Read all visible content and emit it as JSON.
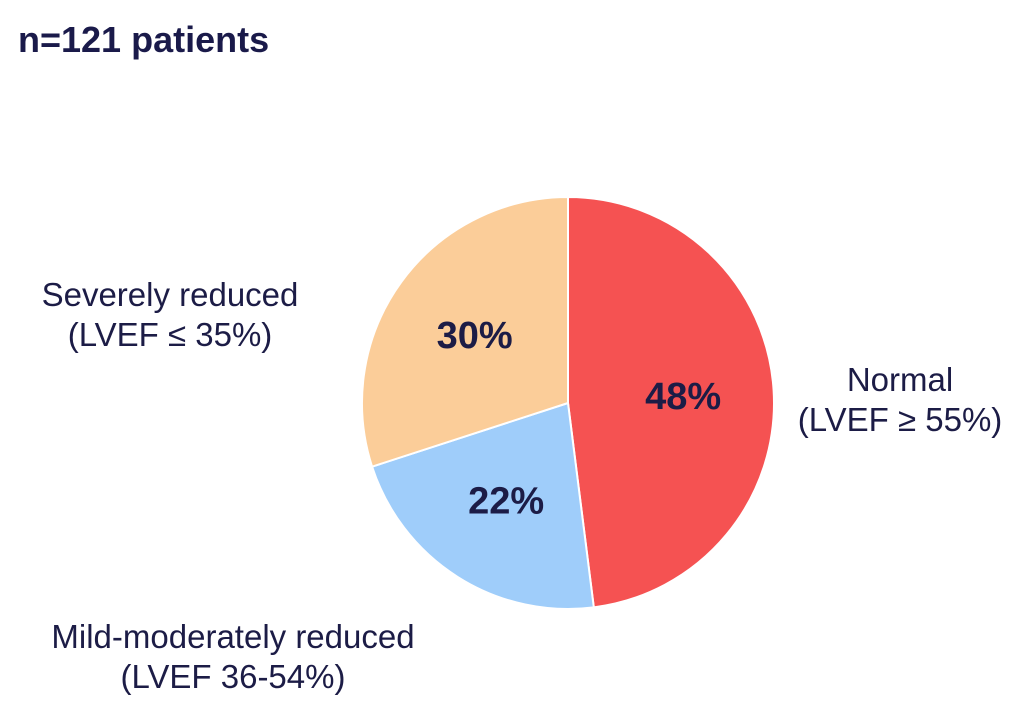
{
  "chart_data": {
    "type": "pie",
    "title": "n=121 patients",
    "start_angle_deg": 0,
    "direction": "clockwise",
    "slices": [
      {
        "label_lines": [
          "Normal",
          "(LVEF ≥ 55%)"
        ],
        "value": 48,
        "value_label": "48%",
        "color": "#f55252"
      },
      {
        "label_lines": [
          "Mild-moderately reduced",
          "(LVEF 36-54%)"
        ],
        "value": 22,
        "value_label": "22%",
        "color": "#9fcdfa"
      },
      {
        "label_lines": [
          "Severely reduced",
          "(LVEF ≤ 35%)"
        ],
        "value": 30,
        "value_label": "30%",
        "color": "#fbcd99"
      }
    ]
  }
}
